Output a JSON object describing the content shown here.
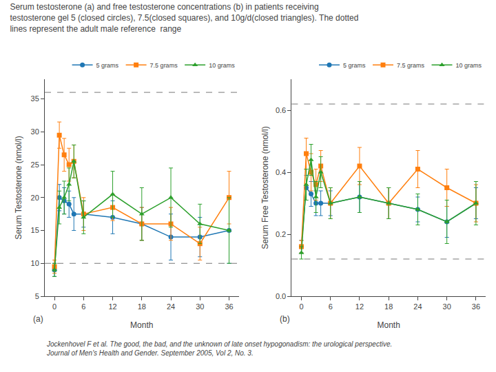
{
  "title": [
    "Serum testosterone (a) and free testosterone concentrations (b) in patients receiving",
    "testosterone gel 5 (closed circles), 7.5(closed squares), and 10g/d(closed triangles). The dotted",
    "lines represent the adult male reference  range"
  ],
  "annotations": [
    "Jockenhovel F et al. The good, the bad, and the unknown of late onset hypogonadism: the urological perspective.",
    "Journal of Men's Health and Gender. September 2005, Vol 2, No. 3."
  ],
  "chart_data": [
    {
      "type": "line",
      "annotations": [
        "(a)"
      ],
      "xlabel": "Month",
      "ylabel": "Serum Testosterone (nmol/l)",
      "x": [
        0,
        1,
        2,
        3,
        4,
        6,
        12,
        18,
        24,
        30,
        36
      ],
      "series": [
        {
          "name": "5 grams",
          "marker": "circle",
          "line_style": "solid",
          "values": [
            9.0,
            20.0,
            19.5,
            19.0,
            17.5,
            17.5,
            17.0,
            16.0,
            14.0,
            14.0,
            15.0
          ],
          "errors": [
            1.0,
            2.0,
            2.0,
            2.0,
            2.5,
            2.0,
            2.5,
            2.5,
            3.5,
            3.0,
            5.0
          ]
        },
        {
          "name": "7.5 grams",
          "marker": "square",
          "line_style": "solid",
          "values": [
            9.5,
            29.5,
            26.5,
            25.0,
            25.5,
            17.5,
            18.5,
            16.0,
            16.0,
            13.0,
            20.0
          ],
          "errors": [
            1.0,
            2.0,
            2.5,
            2.5,
            2.5,
            2.5,
            2.0,
            2.5,
            2.5,
            2.5,
            4.0
          ]
        },
        {
          "name": "10 grams",
          "marker": "triangle",
          "line_style": "solid",
          "values": [
            9.0,
            18.5,
            20.0,
            22.0,
            25.5,
            17.0,
            20.5,
            17.5,
            20.0,
            16.0,
            15.0
          ],
          "errors": [
            1.0,
            2.5,
            2.5,
            2.5,
            2.5,
            2.5,
            3.5,
            4.0,
            4.5,
            3.0,
            5.0
          ]
        }
      ],
      "reference_lines": [
        10.0,
        36.0
      ],
      "xlim": [
        -2,
        38
      ],
      "xticks": [
        0,
        6,
        12,
        18,
        24,
        30,
        36
      ],
      "ylim": [
        5,
        38
      ],
      "yticks": [
        5,
        10,
        15,
        20,
        25,
        30,
        35
      ],
      "grid": false,
      "legend": "upper right"
    },
    {
      "type": "line",
      "annotations": [
        "(b)"
      ],
      "xlabel": "Month",
      "ylabel": "Serum Free Testosterone (nmol/l)",
      "x": [
        0,
        1,
        2,
        3,
        4,
        6,
        12,
        18,
        24,
        30,
        36
      ],
      "series": [
        {
          "name": "5 grams",
          "marker": "circle",
          "line_style": "solid",
          "values": [
            0.16,
            0.35,
            0.33,
            0.3,
            0.3,
            0.3,
            0.32,
            0.3,
            0.28,
            0.24,
            0.3
          ],
          "errors": [
            0.02,
            0.04,
            0.04,
            0.04,
            0.04,
            0.04,
            0.05,
            0.05,
            0.04,
            0.05,
            0.05
          ]
        },
        {
          "name": "7.5 grams",
          "marker": "square",
          "line_style": "solid",
          "values": [
            0.16,
            0.46,
            0.4,
            0.36,
            0.42,
            0.3,
            0.42,
            0.3,
            0.41,
            0.35,
            0.3
          ],
          "errors": [
            0.02,
            0.05,
            0.06,
            0.05,
            0.05,
            0.05,
            0.06,
            0.05,
            0.06,
            0.06,
            0.06
          ]
        },
        {
          "name": "10 grams",
          "marker": "triangle",
          "line_style": "solid",
          "values": [
            0.14,
            0.36,
            0.44,
            0.32,
            0.4,
            0.3,
            0.32,
            0.3,
            0.28,
            0.24,
            0.3
          ],
          "errors": [
            0.02,
            0.05,
            0.05,
            0.05,
            0.05,
            0.05,
            0.05,
            0.05,
            0.05,
            0.07,
            0.07
          ]
        }
      ],
      "reference_lines": [
        0.12,
        0.62
      ],
      "xlim": [
        -2,
        38
      ],
      "xticks": [
        0,
        6,
        12,
        18,
        24,
        30,
        36
      ],
      "ylim": [
        0.0,
        0.7
      ],
      "yticks": [
        {
          "value": 0.0,
          "label": "0.0"
        },
        0.2,
        0.4,
        0.6
      ],
      "grid": false,
      "legend": "upper right"
    }
  ]
}
